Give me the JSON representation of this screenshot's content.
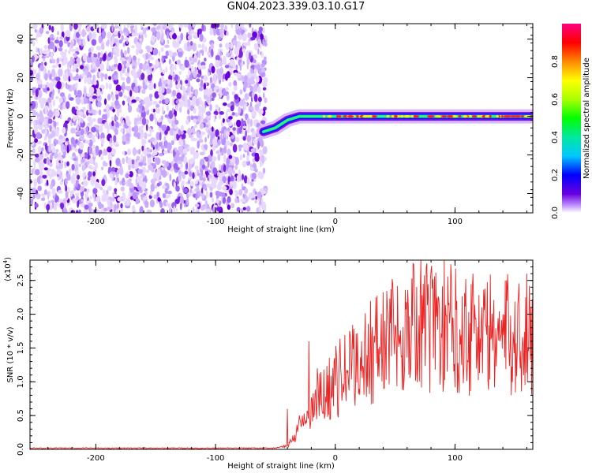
{
  "title": "GN04.2023.339.03.10.G17",
  "chart_data": [
    {
      "type": "heatmap",
      "xlabel": "Height of straight line (km)",
      "ylabel": "Frequency (Hz)",
      "xlim": [
        -255,
        165
      ],
      "ylim": [
        -50,
        48
      ],
      "xticks": [
        -200,
        -100,
        0,
        100
      ],
      "yticks": [
        -40,
        -20,
        0,
        20,
        40
      ],
      "noise_region_x": [
        -255,
        -58
      ],
      "signal_track": [
        {
          "x": -60,
          "y": -8
        },
        {
          "x": -50,
          "y": -6
        },
        {
          "x": -40,
          "y": -2
        },
        {
          "x": -30,
          "y": 0
        },
        {
          "x": -20,
          "y": 0
        },
        {
          "x": 0,
          "y": 0
        },
        {
          "x": 50,
          "y": 0
        },
        {
          "x": 100,
          "y": 0
        },
        {
          "x": 165,
          "y": 0
        }
      ],
      "colorbar": {
        "label": "Normalized spectral amplitude",
        "range": [
          0,
          1
        ],
        "ticks": [
          0.0,
          0.2,
          0.4,
          0.6,
          0.8
        ]
      }
    },
    {
      "type": "line",
      "xlabel": "Height of straight line (km)",
      "ylabel": "SNR (10 * v/v)",
      "y_multiplier": "(x10^4)",
      "y_multiplier_base": "(x10",
      "y_multiplier_exp": "4",
      "y_multiplier_close": ")",
      "xlim": [
        -255,
        165
      ],
      "ylim": [
        0,
        2.8
      ],
      "xticks": [
        -200,
        -100,
        0,
        100
      ],
      "yticks": [
        0.0,
        0.5,
        1.0,
        1.5,
        2.0,
        2.5
      ],
      "color": "#ee2222",
      "envelope": [
        {
          "x": -255,
          "y": 0.01
        },
        {
          "x": -50,
          "y": 0.01
        },
        {
          "x": -40,
          "y": 0.05
        },
        {
          "x": -30,
          "y": 0.3
        },
        {
          "x": -20,
          "y": 0.6
        },
        {
          "x": -10,
          "y": 0.8
        },
        {
          "x": 0,
          "y": 1.0
        },
        {
          "x": 20,
          "y": 1.3
        },
        {
          "x": 40,
          "y": 1.6
        },
        {
          "x": 60,
          "y": 1.8
        },
        {
          "x": 80,
          "y": 1.85
        },
        {
          "x": 100,
          "y": 1.8
        },
        {
          "x": 130,
          "y": 1.7
        },
        {
          "x": 165,
          "y": 1.65
        }
      ],
      "spikes": [
        {
          "x": -40,
          "y": 0.6
        },
        {
          "x": -30,
          "y": 0.5
        },
        {
          "x": -22,
          "y": 1.6
        },
        {
          "x": -15,
          "y": 1.2
        },
        {
          "x": 65,
          "y": 2.75
        },
        {
          "x": 80,
          "y": 2.65
        },
        {
          "x": 115,
          "y": 2.6
        },
        {
          "x": 160,
          "y": 2.6
        }
      ]
    }
  ]
}
